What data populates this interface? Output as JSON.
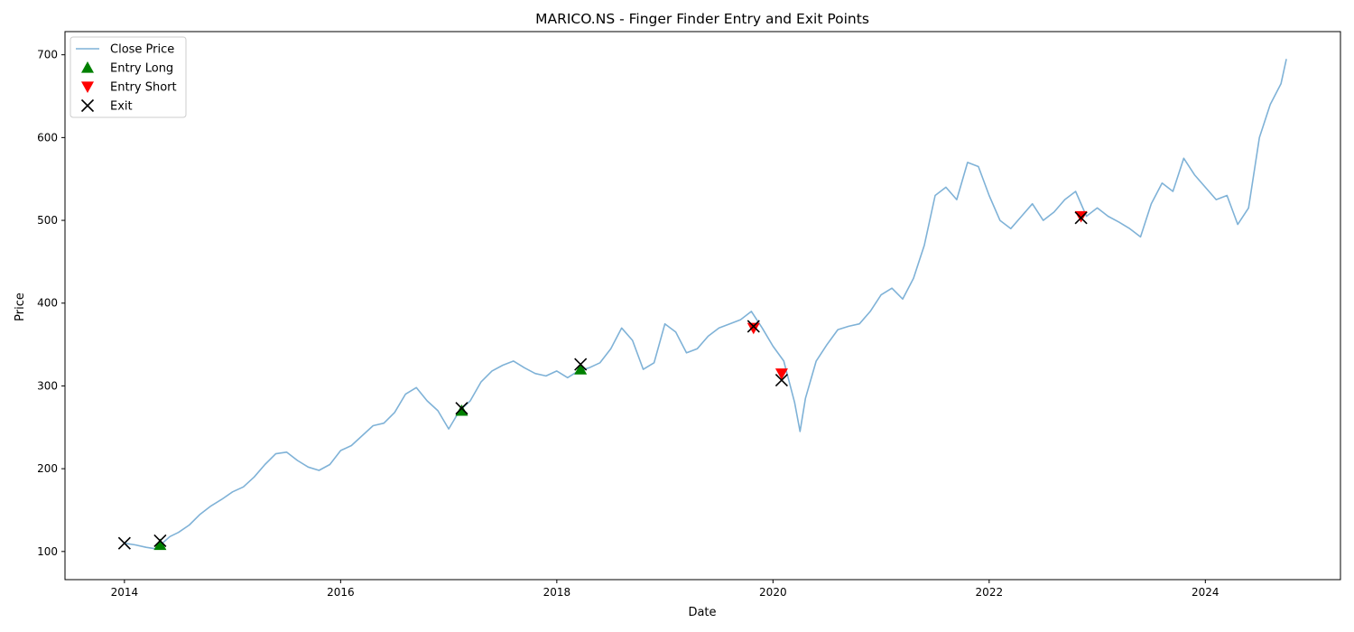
{
  "chart_data": {
    "type": "line",
    "title": "MARICO.NS - Finger Finder Entry and Exit Points",
    "xlabel": "Date",
    "ylabel": "Price",
    "xlim": [
      2013.45,
      2025.25
    ],
    "ylim": [
      66,
      728
    ],
    "x_ticks": [
      2014,
      2016,
      2018,
      2020,
      2022,
      2024
    ],
    "x_tick_labels": [
      "2014",
      "2016",
      "2018",
      "2020",
      "2022",
      "2024"
    ],
    "y_ticks": [
      100,
      200,
      300,
      400,
      500,
      600,
      700
    ],
    "y_tick_labels": [
      "100",
      "200",
      "300",
      "400",
      "500",
      "600",
      "700"
    ],
    "grid": false,
    "legend_position": "upper-left",
    "legend": [
      "Close Price",
      "Entry Long",
      "Entry Short",
      "Exit"
    ],
    "colors": {
      "close": "#7fb2d7",
      "entry_long": "#008000",
      "entry_short": "#ff0000",
      "exit": "#000000"
    },
    "series": [
      {
        "name": "Close Price",
        "x": [
          2014.0,
          2014.1,
          2014.2,
          2014.3,
          2014.35,
          2014.42,
          2014.5,
          2014.6,
          2014.7,
          2014.8,
          2014.9,
          2015.0,
          2015.1,
          2015.2,
          2015.3,
          2015.4,
          2015.5,
          2015.6,
          2015.7,
          2015.8,
          2015.9,
          2016.0,
          2016.1,
          2016.2,
          2016.3,
          2016.4,
          2016.5,
          2016.6,
          2016.7,
          2016.8,
          2016.9,
          2017.0,
          2017.1,
          2017.2,
          2017.3,
          2017.4,
          2017.5,
          2017.6,
          2017.7,
          2017.8,
          2017.9,
          2018.0,
          2018.1,
          2018.2,
          2018.3,
          2018.4,
          2018.5,
          2018.6,
          2018.7,
          2018.8,
          2018.9,
          2019.0,
          2019.1,
          2019.2,
          2019.3,
          2019.4,
          2019.5,
          2019.6,
          2019.7,
          2019.8,
          2019.9,
          2020.0,
          2020.1,
          2020.2,
          2020.25,
          2020.3,
          2020.4,
          2020.5,
          2020.6,
          2020.7,
          2020.8,
          2020.9,
          2021.0,
          2021.1,
          2021.2,
          2021.3,
          2021.4,
          2021.5,
          2021.6,
          2021.7,
          2021.8,
          2021.9,
          2022.0,
          2022.1,
          2022.2,
          2022.3,
          2022.4,
          2022.5,
          2022.6,
          2022.7,
          2022.8,
          2022.9,
          2023.0,
          2023.1,
          2023.2,
          2023.3,
          2023.4,
          2023.5,
          2023.6,
          2023.7,
          2023.8,
          2023.9,
          2024.0,
          2024.1,
          2024.2,
          2024.3,
          2024.4,
          2024.5,
          2024.6,
          2024.7,
          2024.75
        ],
        "values": [
          110,
          108,
          105,
          103,
          110,
          118,
          123,
          132,
          145,
          155,
          163,
          172,
          178,
          190,
          205,
          218,
          220,
          210,
          202,
          198,
          205,
          222,
          228,
          240,
          252,
          255,
          268,
          290,
          298,
          282,
          270,
          248,
          270,
          282,
          305,
          318,
          325,
          330,
          322,
          315,
          312,
          318,
          310,
          318,
          322,
          328,
          345,
          370,
          355,
          320,
          328,
          375,
          365,
          340,
          345,
          360,
          370,
          375,
          380,
          390,
          370,
          348,
          330,
          280,
          245,
          285,
          330,
          350,
          368,
          372,
          375,
          390,
          410,
          418,
          405,
          430,
          470,
          530,
          540,
          525,
          570,
          565,
          530,
          500,
          490,
          505,
          520,
          500,
          510,
          525,
          535,
          505,
          515,
          505,
          498,
          490,
          480,
          520,
          545,
          535,
          575,
          555,
          540,
          525,
          530,
          495,
          515,
          600,
          640,
          665,
          695
        ]
      }
    ],
    "entry_long": {
      "x": [
        2014.33,
        2017.12,
        2018.22
      ],
      "y": [
        108,
        270,
        320
      ]
    },
    "entry_short": {
      "x": [
        2019.82,
        2020.08,
        2022.85
      ],
      "y": [
        370,
        315,
        505
      ]
    },
    "exit": {
      "x": [
        2014.0,
        2014.33,
        2017.12,
        2018.22,
        2019.82,
        2020.08,
        2022.85
      ],
      "y": [
        110,
        113,
        273,
        326,
        372,
        307,
        503
      ]
    }
  }
}
